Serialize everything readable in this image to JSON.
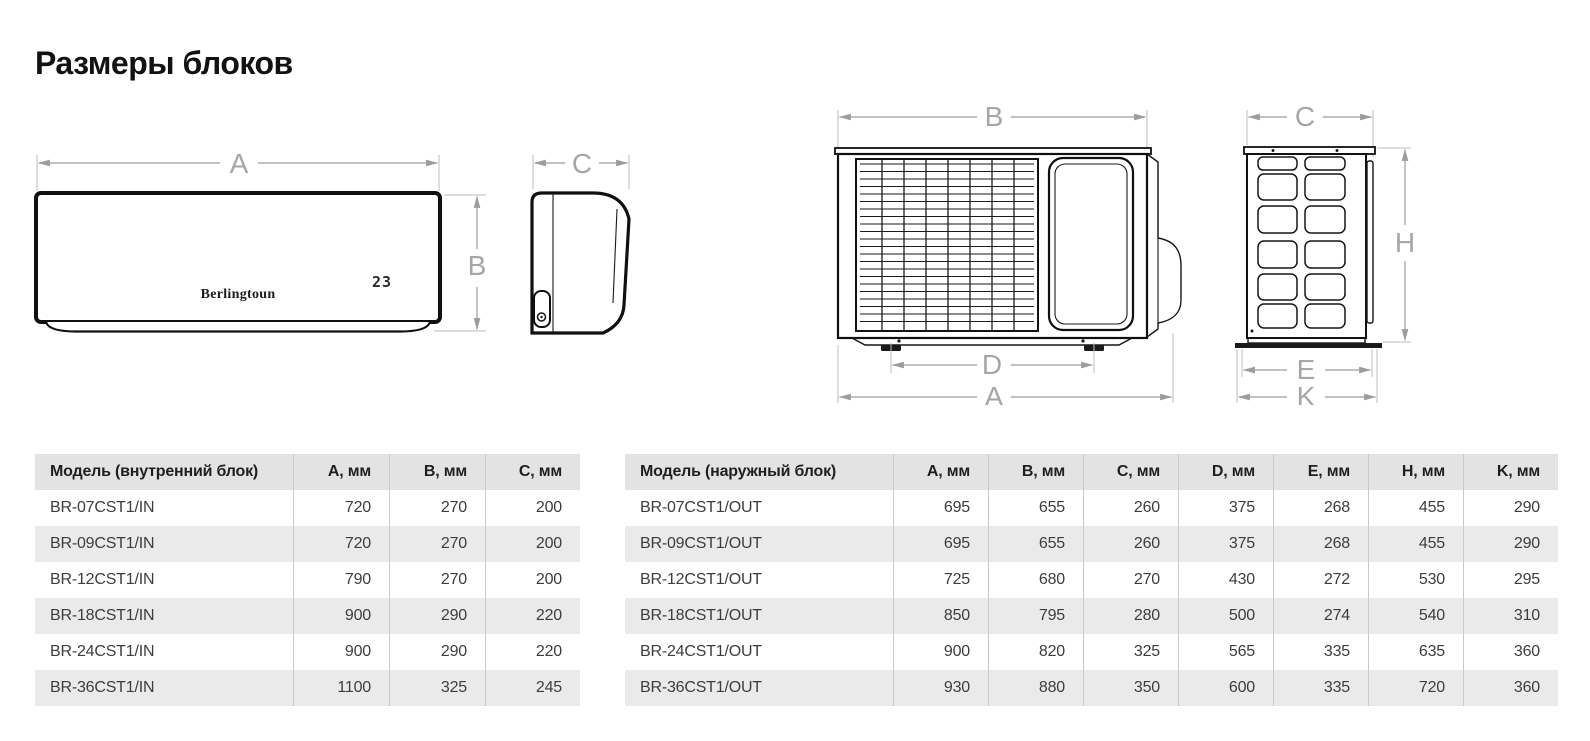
{
  "page": {
    "title": "Размеры блоков"
  },
  "diagrams": {
    "indoor_front": {
      "width_label": "A",
      "height_label": "B",
      "brand": "Berlingtoun",
      "display_value": "23"
    },
    "indoor_side": {
      "depth_label": "C"
    },
    "outdoor_front": {
      "top_width_label": "B",
      "feet_span_label": "D",
      "overall_width_label": "A"
    },
    "outdoor_side": {
      "depth_label": "C",
      "height_label": "H",
      "foot_span_label": "E",
      "base_span_label": "K"
    }
  },
  "indoor_table": {
    "headers": [
      "Модель (внутренний блок)",
      "A, мм",
      "B, мм",
      "C, мм"
    ],
    "rows": [
      [
        "BR-07CST1/IN",
        "720",
        "270",
        "200"
      ],
      [
        "BR-09CST1/IN",
        "720",
        "270",
        "200"
      ],
      [
        "BR-12CST1/IN",
        "790",
        "270",
        "200"
      ],
      [
        "BR-18CST1/IN",
        "900",
        "290",
        "220"
      ],
      [
        "BR-24CST1/IN",
        "900",
        "290",
        "220"
      ],
      [
        "BR-36CST1/IN",
        "1100",
        "325",
        "245"
      ]
    ]
  },
  "outdoor_table": {
    "headers": [
      "Модель (наружный блок)",
      "A, мм",
      "B, мм",
      "C, мм",
      "D, мм",
      "E, мм",
      "H, мм",
      "K, мм"
    ],
    "rows": [
      [
        "BR-07CST1/OUT",
        "695",
        "655",
        "260",
        "375",
        "268",
        "455",
        "290"
      ],
      [
        "BR-09CST1/OUT",
        "695",
        "655",
        "260",
        "375",
        "268",
        "455",
        "290"
      ],
      [
        "BR-12CST1/OUT",
        "725",
        "680",
        "270",
        "430",
        "272",
        "530",
        "295"
      ],
      [
        "BR-18CST1/OUT",
        "850",
        "795",
        "280",
        "500",
        "274",
        "540",
        "310"
      ],
      [
        "BR-24CST1/OUT",
        "900",
        "820",
        "325",
        "565",
        "335",
        "635",
        "360"
      ],
      [
        "BR-36CST1/OUT",
        "930",
        "880",
        "350",
        "600",
        "335",
        "720",
        "360"
      ]
    ]
  },
  "colors": {
    "header_bg": "#e3e3e3",
    "stripe_bg": "#eaeaea",
    "divider": "#c9c9c9",
    "dim_line": "#9c9c9c",
    "drawing_line": "#101010",
    "text": "#3d3d3d"
  }
}
